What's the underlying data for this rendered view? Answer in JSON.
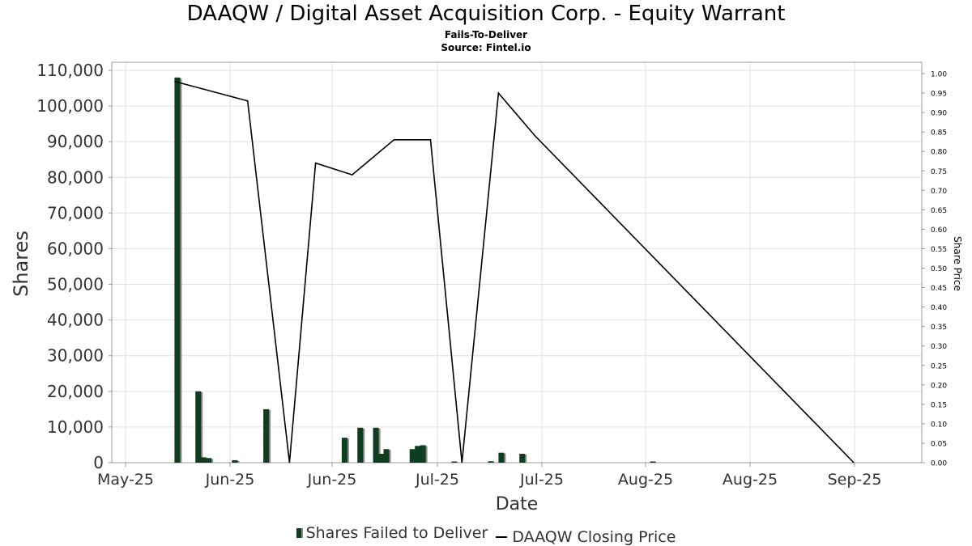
{
  "chart_data": {
    "type": "bar",
    "title": "DAAQW / Digital Asset Acquisition Corp. - Equity Warrant",
    "subtitle": "Fails-To-Deliver",
    "source": "Source: Fintel.io",
    "xlabel": "Date",
    "ylabel": "Shares",
    "y2label": "Share Price",
    "ylim": [
      0,
      110000
    ],
    "y2lim": [
      0,
      1.0
    ],
    "yticks": [
      "0",
      "10,000",
      "20,000",
      "30,000",
      "40,000",
      "50,000",
      "60,000",
      "70,000",
      "80,000",
      "90,000",
      "100,000",
      "110,000"
    ],
    "y2ticks": [
      "0.00",
      "0.05",
      "0.10",
      "0.15",
      "0.20",
      "0.25",
      "0.30",
      "0.35",
      "0.40",
      "0.45",
      "0.50",
      "0.55",
      "0.60",
      "0.65",
      "0.70",
      "0.75",
      "0.80",
      "0.85",
      "0.90",
      "0.95",
      "1.00"
    ],
    "xticks": [
      "May-25",
      "Jun-25",
      "Jun-25",
      "Jul-25",
      "Jul-25",
      "Aug-25",
      "Aug-25",
      "Sep-25"
    ],
    "grid": true,
    "legend_position": "bottom",
    "colors": {
      "bar": "#0f3d1f",
      "bar_shadow": "#8a8a8a",
      "line": "#000000"
    },
    "series": [
      {
        "name": "Shares Failed to Deliver",
        "type": "bar",
        "dates": [
          "2025-05-23",
          "2025-05-27",
          "2025-05-28",
          "2025-05-29",
          "2025-06-03",
          "2025-06-09",
          "2025-06-24",
          "2025-06-27",
          "2025-06-30",
          "2025-07-01",
          "2025-07-02",
          "2025-07-07",
          "2025-07-08",
          "2025-07-09",
          "2025-07-15",
          "2025-07-22",
          "2025-07-24",
          "2025-07-28",
          "2025-08-22"
        ],
        "values": [
          108000,
          20000,
          1500,
          1300,
          700,
          15000,
          7000,
          9800,
          9800,
          2500,
          3800,
          3800,
          4700,
          4900,
          200,
          400,
          2800,
          2500,
          300
        ]
      },
      {
        "name": "DAAQW Closing Price",
        "type": "line",
        "dates": [
          "2025-05-23",
          "2025-06-06",
          "2025-06-14",
          "2025-06-19",
          "2025-06-26",
          "2025-07-04",
          "2025-07-11",
          "2025-07-17",
          "2025-07-24",
          "2025-07-31",
          "2025-09-30"
        ],
        "values": [
          0.98,
          0.93,
          0.0,
          0.77,
          0.74,
          0.83,
          0.83,
          0.0,
          0.95,
          0.84,
          0.0
        ]
      }
    ]
  }
}
